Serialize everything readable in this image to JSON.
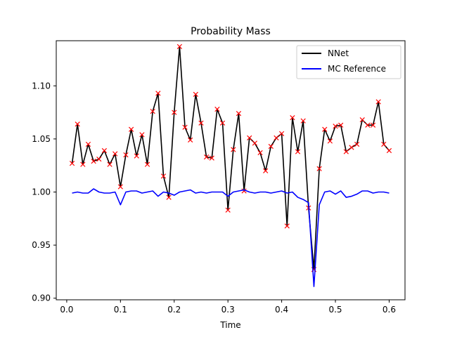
{
  "chart_data": {
    "type": "line",
    "title": "Probability Mass",
    "xlabel": "Time",
    "ylabel": "",
    "xlim": [
      -0.0195,
      0.6295
    ],
    "ylim": [
      0.8985,
      1.1425
    ],
    "xticks": [
      0.0,
      0.1,
      0.2,
      0.3,
      0.4,
      0.5,
      0.6
    ],
    "xtick_labels": [
      "0.0",
      "0.1",
      "0.2",
      "0.3",
      "0.4",
      "0.5",
      "0.6"
    ],
    "yticks": [
      0.9,
      0.95,
      1.0,
      1.05,
      1.1
    ],
    "ytick_labels": [
      "0.90",
      "0.95",
      "1.00",
      "1.05",
      "1.10"
    ],
    "legend_position": "top-right",
    "x": [
      0.01,
      0.02,
      0.03,
      0.04,
      0.05,
      0.06,
      0.07,
      0.08,
      0.09,
      0.1,
      0.11,
      0.12,
      0.13,
      0.14,
      0.15,
      0.16,
      0.17,
      0.18,
      0.19,
      0.2,
      0.21,
      0.22,
      0.23,
      0.24,
      0.25,
      0.26,
      0.27,
      0.28,
      0.29,
      0.3,
      0.31,
      0.32,
      0.33,
      0.34,
      0.35,
      0.36,
      0.37,
      0.38,
      0.39,
      0.4,
      0.41,
      0.42,
      0.43,
      0.44,
      0.45,
      0.46,
      0.47,
      0.48,
      0.49,
      0.5,
      0.51,
      0.52,
      0.53,
      0.54,
      0.55,
      0.56,
      0.57,
      0.58,
      0.59,
      0.6
    ],
    "series": [
      {
        "name": "NNet",
        "color": "#000000",
        "marker_color": "#ff0000",
        "marker": "x",
        "values": [
          1.027,
          1.064,
          1.026,
          1.045,
          1.029,
          1.031,
          1.039,
          1.026,
          1.036,
          1.005,
          1.035,
          1.059,
          1.034,
          1.054,
          1.026,
          1.076,
          1.093,
          1.015,
          0.995,
          1.075,
          1.137,
          1.061,
          1.049,
          1.092,
          1.065,
          1.033,
          1.032,
          1.078,
          1.065,
          0.983,
          1.04,
          1.074,
          1.001,
          1.051,
          1.046,
          1.037,
          1.02,
          1.043,
          1.051,
          1.055,
          0.968,
          1.07,
          1.038,
          1.067,
          0.985,
          0.927,
          1.022,
          1.059,
          1.048,
          1.062,
          1.063,
          1.038,
          1.042,
          1.045,
          1.068,
          1.063,
          1.063,
          1.085,
          1.045,
          1.039
        ]
      },
      {
        "name": "MC Reference",
        "color": "#0000ff",
        "values": [
          0.999,
          1.0,
          0.999,
          0.999,
          1.003,
          1.0,
          0.999,
          0.999,
          1.0,
          0.988,
          1.0,
          1.001,
          1.001,
          0.999,
          1.0,
          1.001,
          0.996,
          1.0,
          0.999,
          0.997,
          1.0,
          1.001,
          1.002,
          0.999,
          1.0,
          0.999,
          1.0,
          1.0,
          1.0,
          0.996,
          1.0,
          1.001,
          1.002,
          1.0,
          0.999,
          1.0,
          1.0,
          0.999,
          1.0,
          1.001,
          0.999,
          1.0,
          0.995,
          0.993,
          0.99,
          0.911,
          0.988,
          1.0,
          1.001,
          0.998,
          1.001,
          0.995,
          0.996,
          0.998,
          1.001,
          1.001,
          0.999,
          1.0,
          1.0,
          0.999
        ]
      }
    ]
  }
}
